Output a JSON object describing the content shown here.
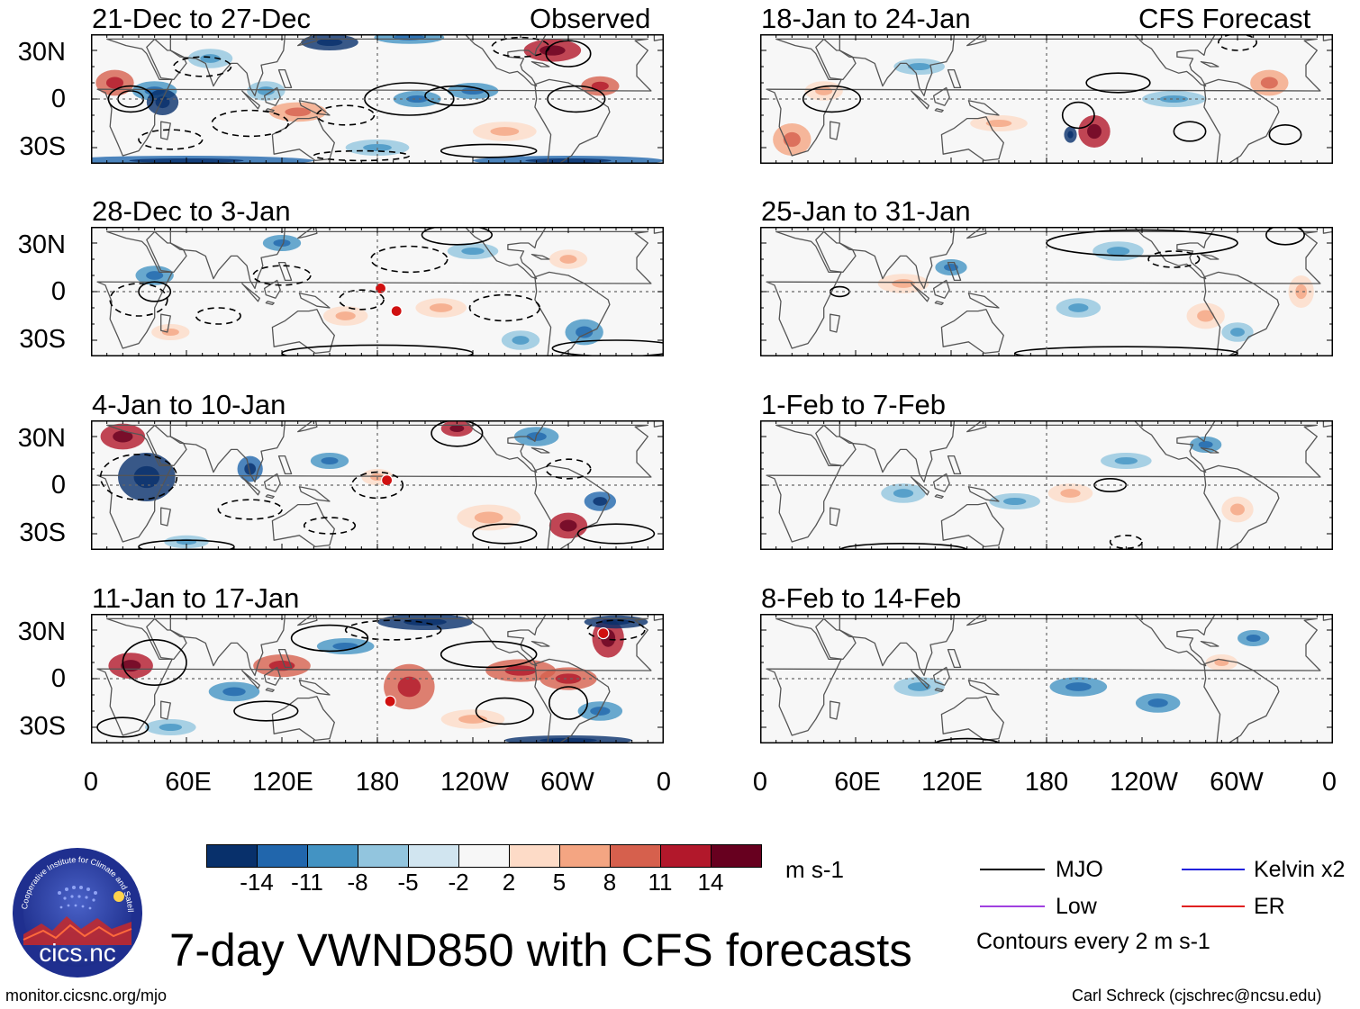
{
  "title": "7-day VWND850 with CFS forecasts",
  "url": "monitor.cicsnc.org/mjo",
  "credit": "Carl Schreck (cjschrec@ncsu.edu)",
  "logo": {
    "text": "cics.nc",
    "ring_text": "Cooperative Institute for Climate and Satellites"
  },
  "columns": {
    "left_label": "Observed",
    "right_label": "CFS Forecast"
  },
  "panels_left": [
    {
      "label": "21-Dec to 27-Dec"
    },
    {
      "label": "28-Dec to 3-Jan"
    },
    {
      "label": "4-Jan to 10-Jan"
    },
    {
      "label": "11-Jan to 17-Jan"
    }
  ],
  "panels_right": [
    {
      "label": "18-Jan to 24-Jan"
    },
    {
      "label": "25-Jan to 31-Jan"
    },
    {
      "label": "1-Feb to 7-Feb"
    },
    {
      "label": "8-Feb to 14-Feb"
    }
  ],
  "lat_labels": [
    "30N",
    "0",
    "30S"
  ],
  "lon_labels": [
    "0",
    "60E",
    "120E",
    "180",
    "120W",
    "60W",
    "0"
  ],
  "colorbar": {
    "units": "m s-1",
    "colors": [
      "#08306b",
      "#2166ac",
      "#4393c3",
      "#92c5de",
      "#d1e5f0",
      "#f7f7f7",
      "#fddbc7",
      "#f4a582",
      "#d6604d",
      "#b2182b",
      "#67001f"
    ],
    "labels": [
      "-14",
      "-11",
      "-8",
      "-5",
      "-2",
      "2",
      "5",
      "8",
      "11",
      "14"
    ]
  },
  "legend": {
    "items": [
      {
        "name": "MJO",
        "color": "#000000"
      },
      {
        "name": "Kelvin x2",
        "color": "#2222dd"
      },
      {
        "name": "Low",
        "color": "#a040e0"
      },
      {
        "name": "ER",
        "color": "#e02020"
      }
    ],
    "note": "Contours every 2 m s-1"
  }
}
